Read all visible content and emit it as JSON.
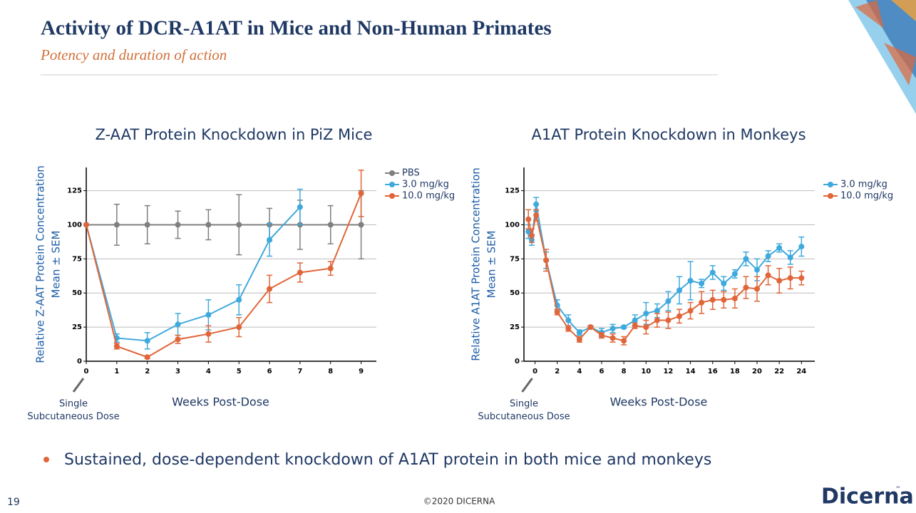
{
  "header": {
    "title": "Activity of DCR-A1AT in Mice and Non-Human Primates",
    "subtitle": "Potency and duration of action"
  },
  "chart_data": [
    {
      "type": "line",
      "title": "Z-AAT Protein Knockdown in PiZ Mice",
      "x_label": "Weeks Post-Dose",
      "y_label": [
        "Relative Z-AAT Protein Concentration",
        "Mean ± SEM"
      ],
      "annotation": [
        "Single",
        "Subcutaneous Dose"
      ],
      "x": [
        0,
        1,
        2,
        3,
        4,
        5,
        6,
        7,
        8,
        9
      ],
      "xlim": [
        0,
        9.5
      ],
      "xticks": [
        0,
        1,
        2,
        3,
        4,
        5,
        6,
        7,
        8,
        9
      ],
      "ylim": [
        0,
        142
      ],
      "yticks": [
        0,
        25,
        50,
        75,
        100,
        125
      ],
      "grid": true,
      "legend": "right",
      "series": [
        {
          "name": "PBS",
          "color": "#7f7f7f",
          "values": [
            100,
            100,
            100,
            100,
            100,
            100,
            100,
            100,
            100,
            100
          ],
          "errors": [
            0,
            15,
            14,
            10,
            11,
            22,
            12,
            18,
            14,
            25
          ]
        },
        {
          "name": "3.0 mg/kg",
          "color": "#3fa9dd",
          "values": [
            100,
            17,
            15,
            27,
            34,
            45,
            89,
            113,
            null,
            null
          ],
          "errors": [
            0,
            3,
            6,
            8,
            11,
            11,
            12,
            13,
            null,
            null
          ]
        },
        {
          "name": "10.0 mg/kg",
          "color": "#e0663a",
          "values": [
            100,
            11,
            3,
            16,
            20,
            25,
            53,
            65,
            68,
            123
          ],
          "errors": [
            0,
            2,
            1,
            3,
            6,
            7,
            10,
            7,
            5,
            17
          ]
        }
      ]
    },
    {
      "type": "line",
      "title": "A1AT Protein Knockdown in Monkeys",
      "x_label": "Weeks Post-Dose",
      "y_label": [
        "Relative A1AT Protein Concentration",
        "Mean ± SEM"
      ],
      "annotation": [
        "Single",
        "Subcutaneous Dose"
      ],
      "x": [
        -0.6,
        -0.3,
        0.1,
        1,
        2,
        3,
        4,
        5,
        6,
        7,
        8,
        9,
        10,
        11,
        12,
        13,
        14,
        15,
        16,
        17,
        18,
        19,
        20,
        21,
        22,
        23,
        24
      ],
      "xlim": [
        -1,
        25.2
      ],
      "xticks": [
        0,
        2,
        4,
        6,
        8,
        10,
        12,
        14,
        16,
        18,
        20,
        22,
        24
      ],
      "ylim": [
        0,
        142
      ],
      "yticks": [
        0,
        25,
        50,
        75,
        100,
        125
      ],
      "grid": true,
      "legend": "right",
      "series": [
        {
          "name": "3.0 mg/kg",
          "color": "#3fa9dd",
          "values": [
            95,
            89,
            115,
            74,
            41,
            30,
            21,
            25,
            21,
            24,
            25,
            30,
            35,
            37,
            44,
            52,
            59,
            57,
            65,
            57,
            64,
            75,
            67,
            77,
            83,
            76,
            84
          ],
          "errors": [
            5,
            4,
            5,
            6,
            4,
            4,
            2,
            1,
            3,
            3,
            1,
            4,
            8,
            5,
            7,
            10,
            14,
            3,
            5,
            5,
            3,
            5,
            8,
            4,
            3,
            5,
            7
          ]
        },
        {
          "name": "10.0 mg/kg",
          "color": "#e0663a",
          "values": [
            104,
            92,
            107,
            74,
            36,
            24,
            16,
            25,
            19,
            17,
            15,
            26,
            25,
            30,
            30,
            33,
            37,
            43,
            45,
            45,
            46,
            54,
            53,
            63,
            59,
            61,
            61
          ],
          "errors": [
            7,
            5,
            4,
            8,
            2,
            2,
            2,
            1,
            2,
            3,
            3,
            2,
            5,
            5,
            6,
            5,
            6,
            8,
            7,
            6,
            7,
            8,
            9,
            7,
            9,
            8,
            5
          ]
        }
      ]
    }
  ],
  "bullet": "Sustained, dose-dependent knockdown of A1AT protein in both mice and monkeys",
  "footer": {
    "page": "19",
    "copyright": "©2020 DICERNA",
    "logo": "Dicerna",
    "trademark": "™"
  }
}
